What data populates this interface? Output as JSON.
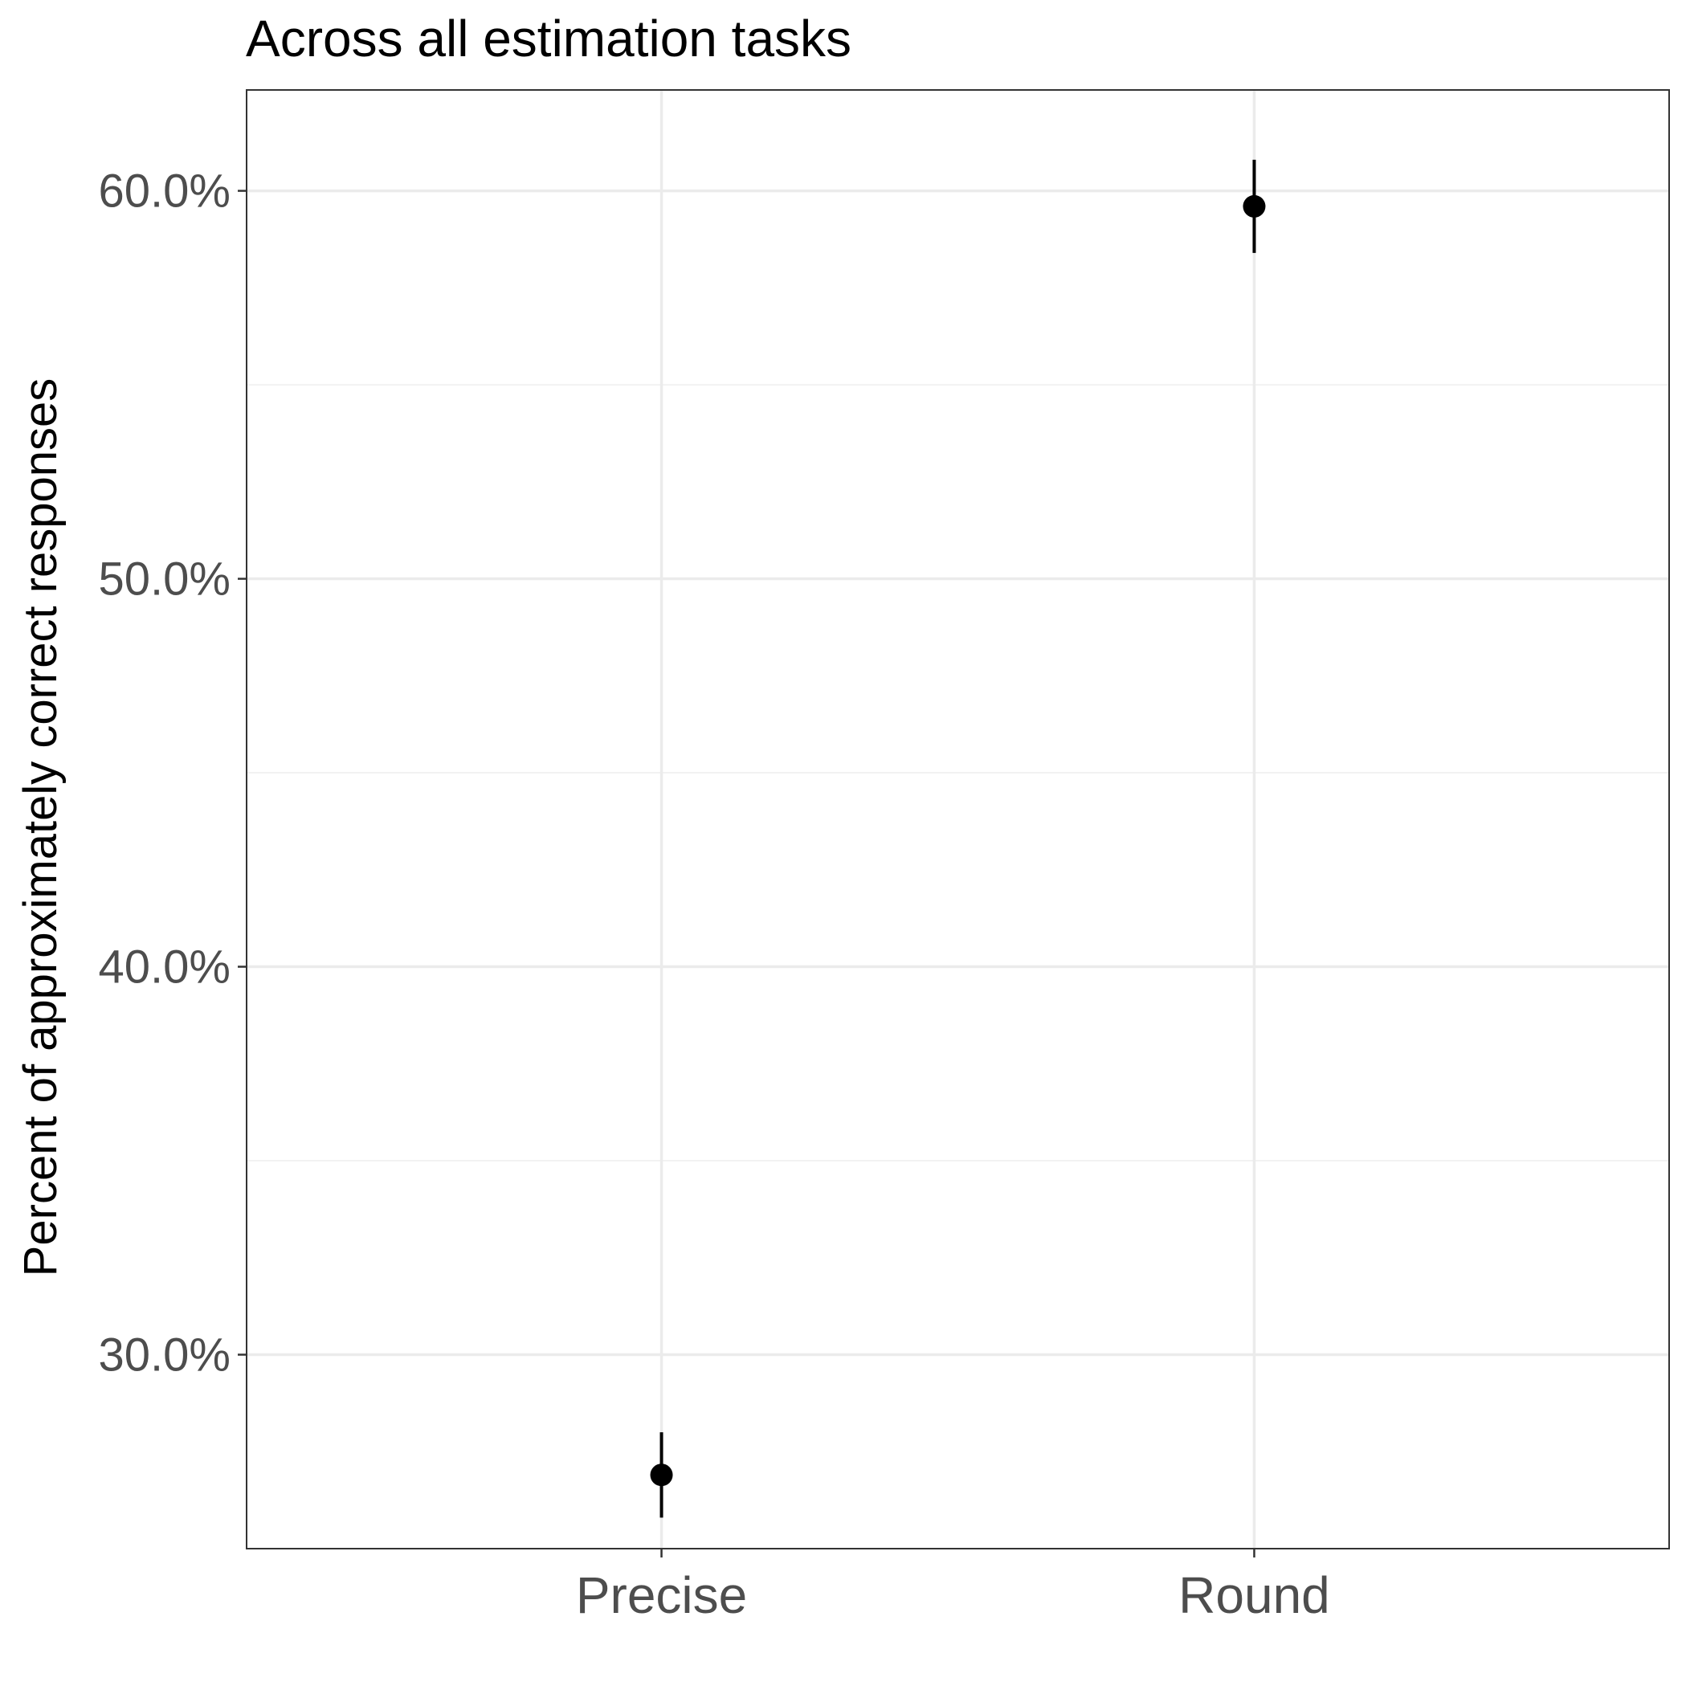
{
  "chart_data": {
    "type": "scatter",
    "title": "Across all estimation tasks",
    "xlabel": "",
    "ylabel": "Percent of approximately correct responses",
    "categories": [
      "Precise",
      "Round"
    ],
    "points": [
      {
        "category": "Precise",
        "value": 26.9,
        "lower": 25.8,
        "upper": 28.0
      },
      {
        "category": "Round",
        "value": 59.6,
        "lower": 58.4,
        "upper": 60.8
      }
    ],
    "yticks": [
      30,
      40,
      50,
      60
    ],
    "ytick_labels": [
      "30.0%",
      "40.0%",
      "50.0%",
      "60.0%"
    ],
    "ylim": [
      25.0,
      62.6
    ],
    "grid": true,
    "legend": "none",
    "colors": {
      "point": "#000000",
      "grid_major": "#ebebeb",
      "grid_minor": "#f2f2f2",
      "panel_border": "#333333",
      "tick_text": "#4d4d4d"
    }
  }
}
